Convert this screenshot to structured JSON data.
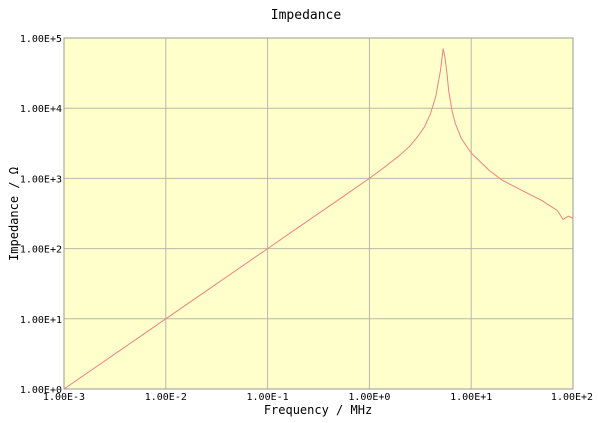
{
  "chart_data": {
    "type": "line",
    "title": "Impedance",
    "xlabel": "Frequency / MHz",
    "ylabel": "Impedance / Ω",
    "xscale": "log",
    "yscale": "log",
    "xlim": [
      0.001,
      100
    ],
    "ylim": [
      1,
      100000
    ],
    "grid": true,
    "x_ticks": [
      {
        "value": 0.001,
        "label": "1.00E-3"
      },
      {
        "value": 0.01,
        "label": "1.00E-2"
      },
      {
        "value": 0.1,
        "label": "1.00E-1"
      },
      {
        "value": 1,
        "label": "1.00E+0"
      },
      {
        "value": 10,
        "label": "1.00E+1"
      },
      {
        "value": 100,
        "label": "1.00E+2"
      }
    ],
    "y_ticks": [
      {
        "value": 1,
        "label": "1.00E+0"
      },
      {
        "value": 10,
        "label": "1.00E+1"
      },
      {
        "value": 100,
        "label": "1.00E+2"
      },
      {
        "value": 1000,
        "label": "1.00E+3"
      },
      {
        "value": 10000,
        "label": "1.00E+4"
      },
      {
        "value": 100000,
        "label": "1.00E+5"
      }
    ],
    "colors": {
      "plot_background": "#ffffcc",
      "grid": "#b8b8a8",
      "line": "#f08080",
      "frame": "#9a9a9a"
    },
    "series": [
      {
        "x": [
          0.001,
          0.002,
          0.005,
          0.01,
          0.02,
          0.05,
          0.1,
          0.2,
          0.5,
          1,
          1.5,
          2,
          2.5,
          3,
          3.5,
          4,
          4.5,
          5,
          5.3,
          5.5,
          5.8,
          6,
          6.5,
          7,
          8,
          10,
          15,
          20,
          30,
          50,
          70,
          80,
          90,
          100
        ],
        "y": [
          1,
          2,
          5,
          10,
          20,
          50,
          100,
          200,
          500,
          1000,
          1550,
          2150,
          2900,
          4000,
          5500,
          8500,
          15000,
          35000,
          70000,
          55000,
          30000,
          18000,
          9000,
          6000,
          3700,
          2300,
          1300,
          950,
          700,
          480,
          350,
          260,
          290,
          270
        ]
      }
    ]
  }
}
